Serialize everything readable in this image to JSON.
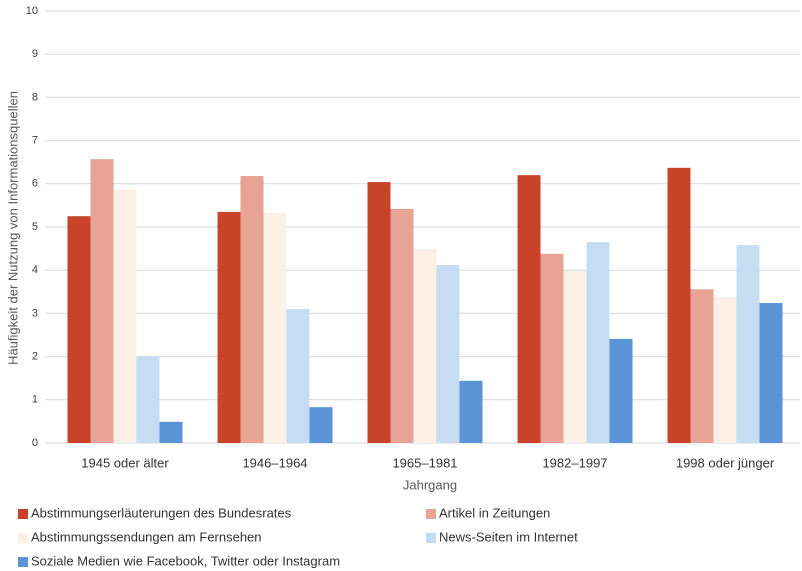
{
  "chart_data": {
    "type": "bar",
    "x_label": "Jahrgang",
    "y_label": "Häufigkeit der Nutzung von Informationsquellen",
    "categories": [
      "1945 oder älter",
      "1946–1964",
      "1965–1981",
      "1982–1997",
      "1998 oder jünger"
    ],
    "series": [
      {
        "name": "Abstimmungserläuterungen des Bundesrates",
        "color": "#c9432a",
        "values": [
          5.25,
          5.35,
          6.04,
          6.2,
          6.37
        ]
      },
      {
        "name": "Artikel in Zeitungen",
        "color": "#e6a396",
        "values": [
          6.57,
          6.18,
          5.42,
          4.38,
          3.56
        ]
      },
      {
        "name": "Abstimmungssendungen am Fernsehen",
        "color": "#fdf0e4",
        "values": [
          5.86,
          5.32,
          4.49,
          3.98,
          3.38
        ]
      },
      {
        "name": "News-Seiten im Internet",
        "color": "#c5dcf2",
        "values": [
          2.01,
          3.1,
          4.12,
          4.65,
          4.58
        ]
      },
      {
        "name": "Soziale Medien wie Facebook, Twitter oder Instagram",
        "color": "#5b95d8",
        "values": [
          0.49,
          0.83,
          1.44,
          2.41,
          3.24
        ]
      }
    ],
    "ylim": [
      0,
      10
    ],
    "yticks": [
      0,
      1,
      2,
      3,
      4,
      5,
      6,
      7,
      8,
      9,
      10
    ],
    "grid": true,
    "legend": "bottom"
  }
}
